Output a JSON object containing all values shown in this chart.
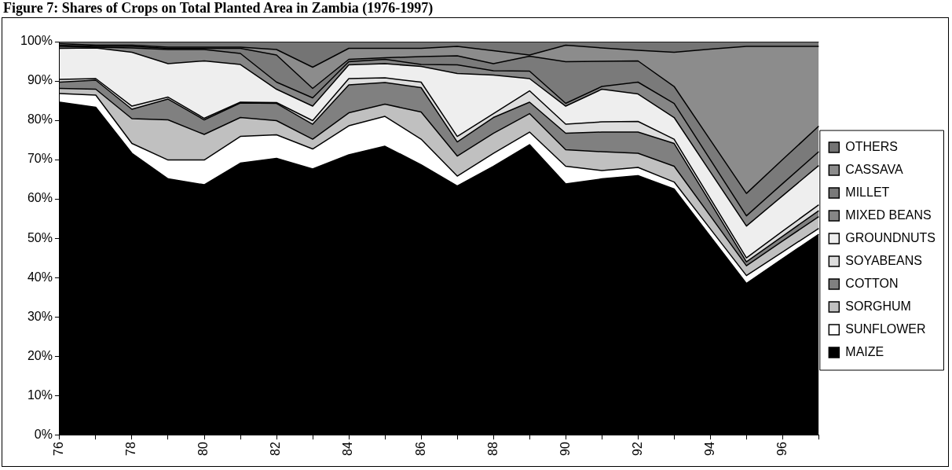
{
  "chart_data": {
    "type": "area",
    "title": "Figure 7: Shares of Crops on Total Planted Area in Zambia (1976-1997)",
    "stacked": true,
    "legend": "right",
    "grid": false,
    "marker": "none",
    "categories": [
      "76",
      null,
      "78",
      null,
      "80",
      null,
      "82",
      null,
      "84",
      null,
      "86",
      null,
      "88",
      null,
      "90",
      null,
      "92",
      null,
      "94",
      null,
      "96",
      null
    ],
    "ylim": [
      0,
      100
    ],
    "yticks": [
      {
        "value": 0,
        "label": "0%"
      },
      {
        "value": 10,
        "label": "10%"
      },
      {
        "value": 20,
        "label": "20%"
      },
      {
        "value": 30,
        "label": "30%"
      },
      {
        "value": 40,
        "label": "40%"
      },
      {
        "value": 50,
        "label": "50%"
      },
      {
        "value": 60,
        "label": "60%"
      },
      {
        "value": 70,
        "label": "70%"
      },
      {
        "value": 80,
        "label": "80%"
      },
      {
        "value": 90,
        "label": "90%"
      },
      {
        "value": 100,
        "label": "100%"
      }
    ],
    "series": [
      {
        "name": "MAIZE",
        "color": "#000000",
        "values": [
          84.6,
          83.3,
          71.6,
          65.1,
          63.6,
          69.1,
          70.3,
          67.6,
          71.2,
          73.4,
          68.7,
          63.3,
          68.3,
          73.8,
          63.8,
          65.1,
          65.9,
          62.5,
          50.5,
          38.5,
          44.8,
          51.0
        ]
      },
      {
        "name": "SUNFLOWER",
        "color": "#ffffff",
        "values": [
          2.2,
          3.1,
          2.5,
          4.8,
          6.3,
          6.8,
          6.0,
          5.1,
          7.4,
          7.6,
          6.5,
          2.5,
          3.3,
          3.2,
          4.5,
          2.1,
          2.1,
          1.8,
          1.9,
          2.0,
          1.7,
          1.5
        ]
      },
      {
        "name": "SORGHUM",
        "color": "#c0c0c0",
        "values": [
          1.3,
          1.5,
          6.3,
          10.2,
          6.5,
          4.8,
          3.6,
          2.5,
          3.3,
          3.1,
          6.9,
          5.1,
          5.1,
          4.7,
          4.2,
          4.8,
          3.6,
          4.0,
          3.3,
          2.5,
          2.8,
          3.0
        ]
      },
      {
        "name": "COTTON",
        "color": "#808080",
        "values": [
          1.6,
          2.3,
          2.4,
          5.3,
          3.7,
          3.7,
          4.4,
          3.8,
          7.1,
          5.5,
          6.2,
          3.6,
          4.0,
          2.9,
          4.2,
          5.0,
          5.4,
          5.8,
          3.4,
          1.0,
          1.2,
          1.5
        ]
      },
      {
        "name": "SOYABEANS",
        "color": "#dddddd",
        "values": [
          0.7,
          0.4,
          0.8,
          0.5,
          0.4,
          0.2,
          0.2,
          0.9,
          1.6,
          1.2,
          1.4,
          1.4,
          1.0,
          2.9,
          2.3,
          2.6,
          2.7,
          1.1,
          1.0,
          1.0,
          1.3,
          1.5
        ]
      },
      {
        "name": "GROUNDNUTS",
        "color": "#eeeeee",
        "values": [
          7.9,
          7.8,
          13.7,
          8.5,
          14.6,
          9.6,
          3.4,
          3.7,
          3.5,
          3.6,
          4.0,
          16.0,
          9.8,
          3.1,
          4.6,
          8.3,
          7.0,
          5.5,
          6.8,
          8.1,
          9.0,
          10.0
        ]
      },
      {
        "name": "MIXED BEANS",
        "color": "#868686",
        "values": [
          0.5,
          0.2,
          1.1,
          3.6,
          2.9,
          2.8,
          1.8,
          2.1,
          0.8,
          1.1,
          0.5,
          2.2,
          1.1,
          1.9,
          0.7,
          0.7,
          3.0,
          3.6,
          3.1,
          2.6,
          3.1,
          3.5
        ]
      },
      {
        "name": "MILLET",
        "color": "#7a7a7a",
        "values": [
          0.3,
          0.2,
          0.4,
          0.3,
          0.3,
          1.3,
          6.9,
          2.4,
          0.6,
          0.4,
          2.0,
          2.3,
          1.8,
          3.8,
          10.6,
          6.4,
          5.4,
          4.3,
          5.0,
          5.7,
          6.1,
          6.5
        ]
      },
      {
        "name": "CASSAVA",
        "color": "#8c8c8c",
        "values": [
          0.4,
          0.3,
          0.3,
          0.3,
          0.3,
          0.3,
          1.4,
          5.4,
          2.8,
          2.4,
          2.1,
          2.4,
          3.3,
          0.3,
          4.2,
          3.4,
          2.7,
          8.7,
          23.1,
          37.4,
          28.8,
          20.3
        ]
      },
      {
        "name": "OTHERS",
        "color": "#747474",
        "values": [
          0.5,
          0.9,
          0.9,
          1.4,
          1.4,
          1.4,
          2.0,
          6.5,
          1.7,
          1.7,
          1.7,
          1.2,
          2.3,
          3.4,
          0.9,
          1.6,
          2.2,
          2.7,
          1.9,
          1.2,
          1.2,
          1.2
        ]
      }
    ]
  }
}
